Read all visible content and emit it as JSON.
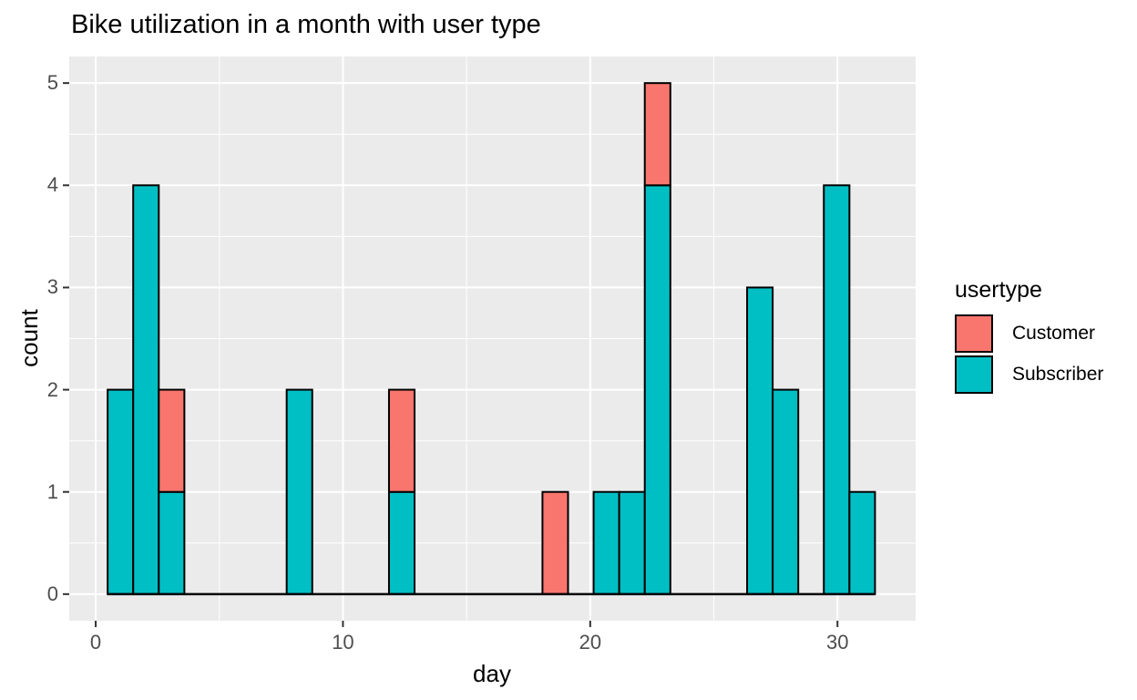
{
  "title": "Bike utilization in a month with user type",
  "axes": {
    "x": {
      "label": "day",
      "ticks": [
        0,
        10,
        20,
        30
      ],
      "minor_ticks": [
        5,
        15,
        25
      ]
    },
    "y": {
      "label": "count",
      "ticks": [
        0,
        1,
        2,
        3,
        4,
        5
      ],
      "minor_ticks": [
        0.5,
        1.5,
        2.5,
        3.5,
        4.5
      ]
    }
  },
  "legend": {
    "title": "usertype",
    "entries": [
      {
        "label": "Customer",
        "color": "#F8766D"
      },
      {
        "label": "Subscriber",
        "color": "#00BFC4"
      }
    ]
  },
  "colors": {
    "customer": "#F8766D",
    "subscriber": "#00BFC4",
    "panel_background": "#EBEBEB",
    "gridline": "#FFFFFF",
    "bar_stroke": "#000000",
    "tick_mark": "#333333",
    "tick_text": "#4D4D4D"
  },
  "chart_data": {
    "type": "bar",
    "subtype": "stacked-histogram",
    "title": "Bike utilization in a month with user type",
    "xlabel": "day",
    "ylabel": "count",
    "xlim": [
      -1.07,
      33.16
    ],
    "ylim": [
      -0.26,
      5.26
    ],
    "grid": "on",
    "legend_position": "right",
    "binwidth": 1.0345,
    "series_names": [
      "Customer",
      "Subscriber"
    ],
    "bars": [
      {
        "day": 1,
        "center": 1.0,
        "customer": 0,
        "subscriber": 2
      },
      {
        "day": 2,
        "center": 2.034,
        "customer": 0,
        "subscriber": 4
      },
      {
        "day": 3,
        "center": 3.069,
        "customer": 1,
        "subscriber": 1
      },
      {
        "day": 8,
        "center": 8.241,
        "customer": 0,
        "subscriber": 2
      },
      {
        "day": 12,
        "center": 12.379,
        "customer": 1,
        "subscriber": 1
      },
      {
        "day": 19,
        "center": 18.586,
        "customer": 1,
        "subscriber": 0
      },
      {
        "day": 21,
        "center": 20.655,
        "customer": 0,
        "subscriber": 1
      },
      {
        "day": 22,
        "center": 21.69,
        "customer": 0,
        "subscriber": 1
      },
      {
        "day": 23,
        "center": 22.724,
        "customer": 1,
        "subscriber": 4
      },
      {
        "day": 27,
        "center": 26.862,
        "customer": 0,
        "subscriber": 3
      },
      {
        "day": 28,
        "center": 27.897,
        "customer": 0,
        "subscriber": 2
      },
      {
        "day": 30,
        "center": 29.966,
        "customer": 0,
        "subscriber": 4
      },
      {
        "day": 31,
        "center": 31.0,
        "customer": 0,
        "subscriber": 1
      }
    ],
    "baseline_span": [
      0.483,
      31.517
    ]
  }
}
